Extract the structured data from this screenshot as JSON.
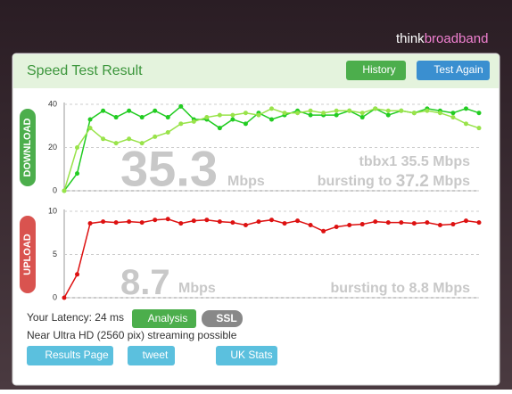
{
  "logo": {
    "first": "think",
    "second": "broadband"
  },
  "header": {
    "title": "Speed Test Result",
    "buttons": [
      "History",
      "Test Again"
    ]
  },
  "chart_data": [
    {
      "type": "line",
      "axis_label": "DOWNLOAD",
      "label_color": "#4cae4c",
      "series": [
        {
          "color": "#22cc22",
          "values": [
            0,
            8,
            33,
            37,
            34,
            37,
            34,
            37,
            34,
            39,
            33,
            33,
            29,
            33,
            31,
            36,
            33,
            35,
            37,
            35,
            35,
            35,
            37,
            34,
            38,
            35,
            37,
            36,
            38,
            37,
            36,
            38,
            36
          ]
        },
        {
          "color": "#99e34a",
          "values": [
            0,
            20,
            29,
            24,
            22,
            24,
            22,
            25,
            27,
            31,
            32,
            34,
            35,
            35,
            36,
            35,
            38,
            36,
            36,
            37,
            36,
            37,
            37,
            36,
            38,
            37,
            37,
            36,
            37,
            36,
            34,
            31,
            29
          ]
        }
      ],
      "ylim": [
        0,
        40
      ],
      "yticks": [
        0,
        20,
        40
      ],
      "grid": true,
      "value": 35.3,
      "unit": "Mbps",
      "server": "tbbx1 35.5 Mbps",
      "burst_prefix": "bursting to",
      "burst_value": 37.2,
      "burst_unit": "Mbps"
    },
    {
      "type": "line",
      "axis_label": "UPLOAD",
      "label_color": "#d9534f",
      "series": [
        {
          "color": "#dd1111",
          "values": [
            0,
            2.7,
            8.6,
            8.8,
            8.7,
            8.8,
            8.7,
            9.0,
            9.1,
            8.6,
            8.9,
            9.0,
            8.8,
            8.7,
            8.4,
            8.8,
            9.0,
            8.6,
            8.9,
            8.4,
            7.7,
            8.2,
            8.4,
            8.5,
            8.8,
            8.7,
            8.7,
            8.6,
            8.7,
            8.4,
            8.5,
            8.9,
            8.7
          ]
        }
      ],
      "ylim": [
        0,
        10
      ],
      "yticks": [
        0,
        5,
        10
      ],
      "grid": true,
      "value": 8.7,
      "unit": "Mbps",
      "burst_prefix": "bursting to",
      "burst_value": 8.8,
      "burst_unit": "Mbps"
    }
  ],
  "footer": {
    "latency": "Your Latency: 24 ms",
    "badges": [
      "Analysis",
      "SSL"
    ],
    "streaming": "Near Ultra HD (2560 pix) streaming possible",
    "links": [
      "Results Page",
      "tweet",
      "UK Stats"
    ]
  }
}
